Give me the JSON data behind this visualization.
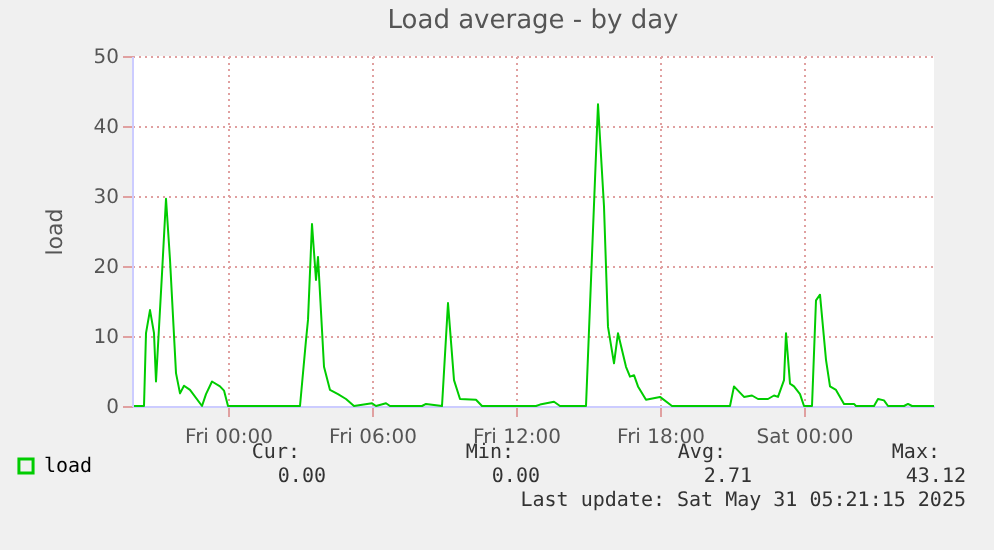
{
  "chart_data": {
    "type": "line",
    "title": "Load average - by day",
    "ylabel": "load",
    "x": [
      "2025-05-29T20:05",
      "2025-05-29T20:30",
      "2025-05-29T20:35",
      "2025-05-29T20:45",
      "2025-05-29T20:55",
      "2025-05-29T21:00",
      "2025-05-29T21:15",
      "2025-05-29T21:25",
      "2025-05-29T21:35",
      "2025-05-29T21:50",
      "2025-05-29T22:00",
      "2025-05-29T22:10",
      "2025-05-29T22:25",
      "2025-05-29T22:55",
      "2025-05-29T23:05",
      "2025-05-29T23:20",
      "2025-05-29T23:40",
      "2025-05-29T23:50",
      "2025-05-30T00:00",
      "2025-05-30T03:00",
      "2025-05-30T03:15",
      "2025-05-30T03:20",
      "2025-05-30T03:30",
      "2025-05-30T03:40",
      "2025-05-30T03:45",
      "2025-05-30T04:00",
      "2025-05-30T04:15",
      "2025-05-30T04:35",
      "2025-05-30T04:55",
      "2025-05-30T05:15",
      "2025-05-30T06:00",
      "2025-05-30T06:10",
      "2025-05-30T06:35",
      "2025-05-30T06:45",
      "2025-05-30T08:05",
      "2025-05-30T08:15",
      "2025-05-30T08:55",
      "2025-05-30T09:10",
      "2025-05-30T09:25",
      "2025-05-30T09:40",
      "2025-05-30T10:20",
      "2025-05-30T10:35",
      "2025-05-30T12:50",
      "2025-05-30T13:00",
      "2025-05-30T13:35",
      "2025-05-30T13:50",
      "2025-05-30T14:55",
      "2025-05-30T15:25",
      "2025-05-30T15:40",
      "2025-05-30T15:50",
      "2025-05-30T16:05",
      "2025-05-30T16:15",
      "2025-05-30T16:35",
      "2025-05-30T16:45",
      "2025-05-30T16:55",
      "2025-05-30T17:05",
      "2025-05-30T17:25",
      "2025-05-30T18:00",
      "2025-05-30T18:30",
      "2025-05-30T20:55",
      "2025-05-30T21:05",
      "2025-05-30T21:30",
      "2025-05-30T21:50",
      "2025-05-30T22:05",
      "2025-05-30T22:30",
      "2025-05-30T22:45",
      "2025-05-30T22:55",
      "2025-05-30T23:10",
      "2025-05-30T23:15",
      "2025-05-30T23:25",
      "2025-05-30T23:35",
      "2025-05-30T23:50",
      "2025-05-31T00:00",
      "2025-05-31T00:20",
      "2025-05-31T00:30",
      "2025-05-31T00:40",
      "2025-05-31T00:55",
      "2025-05-31T01:05",
      "2025-05-31T01:20",
      "2025-05-31T01:40",
      "2025-05-31T02:05",
      "2025-05-31T02:10",
      "2025-05-31T02:55",
      "2025-05-31T03:05",
      "2025-05-31T03:20",
      "2025-05-31T03:30",
      "2025-05-31T04:10",
      "2025-05-31T04:20",
      "2025-05-31T04:30",
      "2025-05-31T05:25"
    ],
    "series": [
      {
        "name": "load",
        "color": "#00cc00",
        "values": [
          0,
          0,
          10.4,
          13.7,
          10.4,
          3.5,
          18.9,
          29.6,
          20.9,
          4.7,
          1.8,
          2.9,
          2.3,
          0,
          1.7,
          3.5,
          2.8,
          2.2,
          0,
          0,
          9.4,
          12.3,
          26,
          18,
          21.3,
          5.6,
          2.3,
          1.7,
          1.0,
          0,
          0.4,
          0,
          0.4,
          0,
          0,
          0.3,
          0,
          14.7,
          3.7,
          1.0,
          0.9,
          0,
          0,
          0.2,
          0.6,
          0,
          0,
          43.12,
          28.5,
          11.3,
          6.1,
          10.4,
          5.6,
          4.2,
          4.4,
          2.8,
          0.9,
          1.3,
          0,
          0,
          2.8,
          1.3,
          1.5,
          1.0,
          1.0,
          1.5,
          1.3,
          3.7,
          10.4,
          3.2,
          2.8,
          1.7,
          0,
          0,
          15.1,
          15.9,
          6.6,
          2.8,
          2.3,
          0.3,
          0.3,
          0,
          0,
          1.0,
          0.8,
          0,
          0,
          0.3,
          0,
          0
        ]
      }
    ],
    "xlim": [
      "2025-05-29T20:00",
      "2025-05-31T05:25"
    ],
    "xticks": [
      {
        "value": "2025-05-30T00:00",
        "label": "Fri 00:00"
      },
      {
        "value": "2025-05-30T06:00",
        "label": "Fri 06:00"
      },
      {
        "value": "2025-05-30T12:00",
        "label": "Fri 12:00"
      },
      {
        "value": "2025-05-30T18:00",
        "label": "Fri 18:00"
      },
      {
        "value": "2025-05-31T00:00",
        "label": "Sat 00:00"
      }
    ],
    "ylim": [
      0,
      50
    ],
    "yticks": [
      0,
      10,
      20,
      30,
      40,
      50
    ],
    "grid": true,
    "legend": "bottom left",
    "line_style": "solid",
    "annotations": [
      "Cur:",
      "Min:",
      "Avg:",
      "Max:",
      "0.00",
      "0.00",
      "2.71",
      "43.12",
      "Last update: Sat May 31 05:21:15 2025"
    ]
  }
}
